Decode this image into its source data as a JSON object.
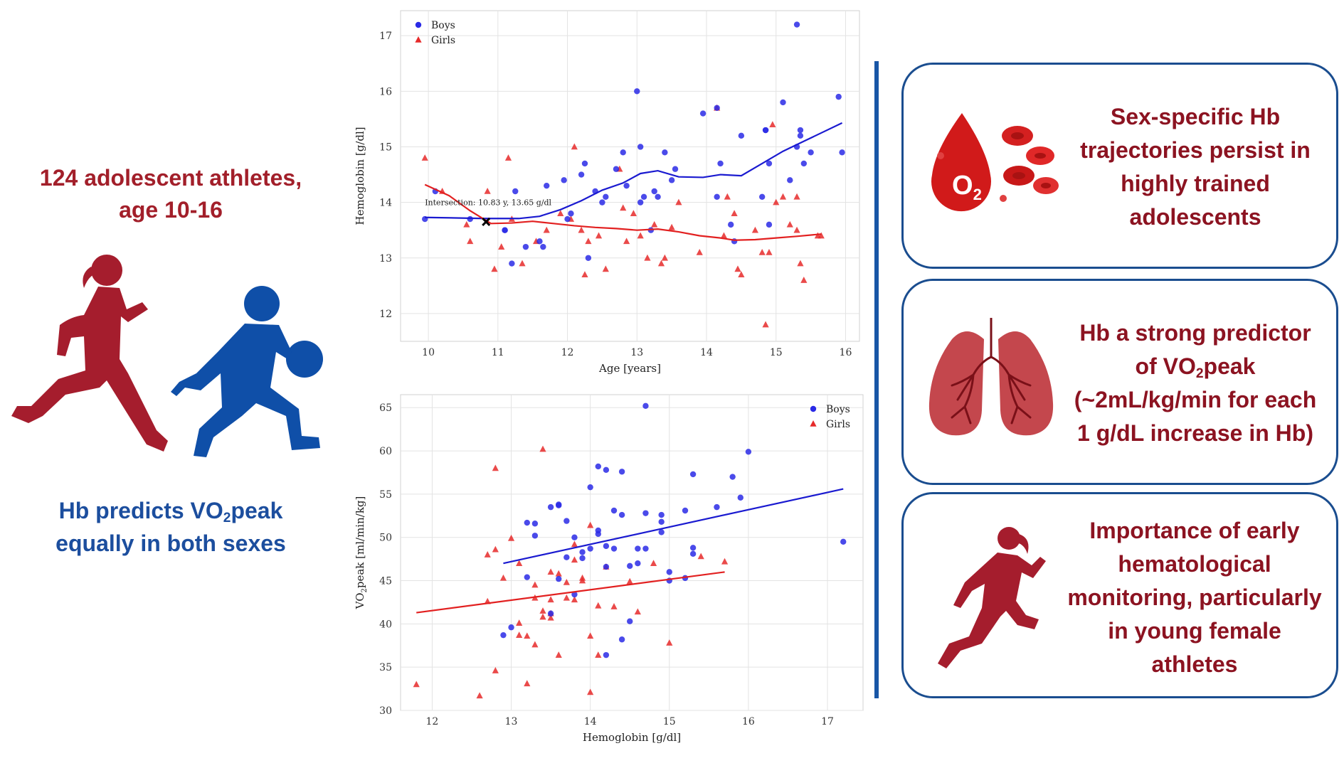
{
  "left": {
    "title_lines": [
      "124 adolescent athletes,",
      "age 10-16"
    ],
    "bottom_line1_pre": "Hb predicts VO",
    "bottom_line1_sub": "2",
    "bottom_line1_post": "peak",
    "bottom_line2": "equally in both sexes",
    "icons": [
      "female-runner-icon",
      "male-basketball-player-icon"
    ],
    "colors": {
      "female": "#a51d2d",
      "male": "#0f4fa8"
    }
  },
  "panels": [
    {
      "icon": "blood-drop-o2-icon",
      "drop_label": "O",
      "drop_sub": "2",
      "lines": [
        "Sex-specific Hb",
        "trajectories persist in",
        "highly trained",
        "adolescents"
      ]
    },
    {
      "icon": "lungs-icon",
      "line1": "Hb a strong predictor",
      "line2_pre": "of  VO",
      "line2_sub": "2",
      "line2_post": "peak",
      "line3": "(~2mL/kg/min for each",
      "line4": "1 g/dL increase in Hb)"
    },
    {
      "icon": "female-sprinter-icon",
      "lines": [
        "Importance of early",
        "hematological",
        "monitoring, particularly",
        "in young female",
        "athletes"
      ]
    }
  ],
  "chart_data": [
    {
      "type": "scatter",
      "xlabel": "Age [years]",
      "ylabel": "Hemoglobin [g/dl]",
      "xlim": [
        9.6,
        16.2
      ],
      "ylim": [
        11.5,
        17.45
      ],
      "xticks": [
        10,
        11,
        12,
        13,
        14,
        15,
        16
      ],
      "yticks": [
        12,
        13,
        14,
        15,
        16,
        17
      ],
      "grid": true,
      "legend": "top-left",
      "annotation": {
        "text": "Intersection: 10.83 y, 13.65 g/dl",
        "x": 10.83,
        "y": 13.65
      },
      "series": [
        {
          "name": "Boys",
          "marker": "circle",
          "color": "#2a2ae6",
          "points": [
            [
              9.95,
              13.7
            ],
            [
              10.1,
              14.2
            ],
            [
              10.6,
              13.7
            ],
            [
              11.1,
              13.5
            ],
            [
              11.2,
              12.9
            ],
            [
              11.25,
              14.2
            ],
            [
              11.4,
              13.2
            ],
            [
              11.6,
              13.3
            ],
            [
              11.65,
              13.2
            ],
            [
              11.7,
              14.3
            ],
            [
              11.95,
              14.4
            ],
            [
              12.0,
              13.7
            ],
            [
              12.2,
              14.5
            ],
            [
              12.25,
              14.7
            ],
            [
              12.3,
              13.0
            ],
            [
              12.4,
              14.2
            ],
            [
              12.5,
              14.0
            ],
            [
              12.55,
              14.1
            ],
            [
              12.7,
              14.6
            ],
            [
              12.8,
              14.9
            ],
            [
              12.85,
              14.3
            ],
            [
              13.0,
              16.0
            ],
            [
              13.05,
              14.0
            ],
            [
              13.05,
              15.0
            ],
            [
              13.2,
              13.5
            ],
            [
              13.25,
              14.2
            ],
            [
              13.3,
              14.1
            ],
            [
              13.4,
              14.9
            ],
            [
              13.5,
              14.4
            ],
            [
              13.55,
              14.6
            ],
            [
              13.95,
              15.6
            ],
            [
              14.15,
              15.7
            ],
            [
              14.15,
              14.1
            ],
            [
              14.2,
              14.7
            ],
            [
              14.35,
              13.6
            ],
            [
              14.4,
              13.3
            ],
            [
              14.5,
              15.2
            ],
            [
              14.8,
              14.1
            ],
            [
              14.85,
              15.3
            ],
            [
              14.9,
              13.6
            ],
            [
              14.9,
              14.7
            ],
            [
              15.1,
              15.8
            ],
            [
              15.2,
              14.4
            ],
            [
              15.3,
              17.2
            ],
            [
              15.35,
              15.3
            ],
            [
              15.35,
              15.2
            ],
            [
              15.4,
              14.7
            ],
            [
              15.5,
              14.9
            ],
            [
              15.9,
              15.9
            ],
            [
              15.95,
              14.9
            ],
            [
              15.3,
              15.0
            ],
            [
              14.85,
              15.3
            ],
            [
              11.1,
              13.5
            ],
            [
              12.05,
              13.8
            ],
            [
              13.1,
              14.1
            ]
          ]
        },
        {
          "name": "Girls",
          "marker": "triangle",
          "color": "#e62a2a",
          "points": [
            [
              9.95,
              14.8
            ],
            [
              10.2,
              14.2
            ],
            [
              10.55,
              13.6
            ],
            [
              10.6,
              13.3
            ],
            [
              10.85,
              14.2
            ],
            [
              10.95,
              12.8
            ],
            [
              11.05,
              13.2
            ],
            [
              11.15,
              14.8
            ],
            [
              11.2,
              13.7
            ],
            [
              11.35,
              12.9
            ],
            [
              11.55,
              13.3
            ],
            [
              11.7,
              13.5
            ],
            [
              11.9,
              13.8
            ],
            [
              12.05,
              13.7
            ],
            [
              12.1,
              15.0
            ],
            [
              12.2,
              13.5
            ],
            [
              12.25,
              12.7
            ],
            [
              12.3,
              13.3
            ],
            [
              12.45,
              13.4
            ],
            [
              12.55,
              12.8
            ],
            [
              12.75,
              14.6
            ],
            [
              12.85,
              13.3
            ],
            [
              12.95,
              13.8
            ],
            [
              13.05,
              13.4
            ],
            [
              13.15,
              13.0
            ],
            [
              13.25,
              13.6
            ],
            [
              13.35,
              12.9
            ],
            [
              13.4,
              13.0
            ],
            [
              13.6,
              14.0
            ],
            [
              13.9,
              13.1
            ],
            [
              14.15,
              15.7
            ],
            [
              14.25,
              13.4
            ],
            [
              14.3,
              14.1
            ],
            [
              14.4,
              13.8
            ],
            [
              14.45,
              12.8
            ],
            [
              14.5,
              12.7
            ],
            [
              14.7,
              13.5
            ],
            [
              14.8,
              13.1
            ],
            [
              14.85,
              11.8
            ],
            [
              14.9,
              13.1
            ],
            [
              14.95,
              15.4
            ],
            [
              15.1,
              14.1
            ],
            [
              15.2,
              13.6
            ],
            [
              15.3,
              14.1
            ],
            [
              15.35,
              12.9
            ],
            [
              15.4,
              12.6
            ],
            [
              15.6,
              13.4
            ],
            [
              15.65,
              13.4
            ],
            [
              15.3,
              13.5
            ],
            [
              15.0,
              14.0
            ],
            [
              13.5,
              13.55
            ],
            [
              12.8,
              13.9
            ]
          ]
        }
      ],
      "trend_boys": [
        [
          9.95,
          13.73
        ],
        [
          10.4,
          13.72
        ],
        [
          10.8,
          13.71
        ],
        [
          11.3,
          13.71
        ],
        [
          11.6,
          13.75
        ],
        [
          11.9,
          13.87
        ],
        [
          12.2,
          14.03
        ],
        [
          12.5,
          14.22
        ],
        [
          12.8,
          14.35
        ],
        [
          13.05,
          14.52
        ],
        [
          13.3,
          14.57
        ],
        [
          13.6,
          14.46
        ],
        [
          13.95,
          14.45
        ],
        [
          14.2,
          14.5
        ],
        [
          14.5,
          14.48
        ],
        [
          14.8,
          14.7
        ],
        [
          15.1,
          14.92
        ],
        [
          15.4,
          15.1
        ],
        [
          15.65,
          15.25
        ],
        [
          15.95,
          15.43
        ]
      ],
      "trend_girls": [
        [
          9.95,
          14.32
        ],
        [
          10.3,
          14.12
        ],
        [
          10.6,
          13.85
        ],
        [
          10.9,
          13.62
        ],
        [
          11.2,
          13.63
        ],
        [
          11.5,
          13.66
        ],
        [
          11.8,
          13.62
        ],
        [
          12.1,
          13.58
        ],
        [
          12.4,
          13.55
        ],
        [
          12.7,
          13.53
        ],
        [
          13.0,
          13.5
        ],
        [
          13.3,
          13.52
        ],
        [
          13.6,
          13.47
        ],
        [
          13.9,
          13.4
        ],
        [
          14.2,
          13.36
        ],
        [
          14.4,
          13.32
        ],
        [
          14.7,
          13.33
        ],
        [
          15.0,
          13.36
        ],
        [
          15.3,
          13.39
        ],
        [
          15.65,
          13.43
        ]
      ]
    },
    {
      "type": "scatter",
      "xlabel": "Hemoglobin [g/dl]",
      "ylabel_pre": "VO",
      "ylabel_sub": "2",
      "ylabel_post": "peak [ml/min/kg]",
      "xlim": [
        11.6,
        17.45
      ],
      "ylim": [
        30,
        66.5
      ],
      "xticks": [
        12,
        13,
        14,
        15,
        16,
        17
      ],
      "yticks": [
        30,
        35,
        40,
        45,
        50,
        55,
        60,
        65
      ],
      "grid": true,
      "legend": "top-right",
      "series": [
        {
          "name": "Boys",
          "marker": "circle",
          "color": "#2a2ae6",
          "points": [
            [
              12.9,
              38.7
            ],
            [
              13.0,
              39.6
            ],
            [
              13.2,
              45.4
            ],
            [
              13.2,
              51.7
            ],
            [
              13.3,
              50.2
            ],
            [
              13.3,
              51.6
            ],
            [
              13.5,
              53.5
            ],
            [
              13.5,
              41.2
            ],
            [
              13.6,
              53.7
            ],
            [
              13.6,
              53.8
            ],
            [
              13.6,
              45.2
            ],
            [
              13.7,
              47.7
            ],
            [
              13.7,
              51.9
            ],
            [
              13.8,
              50.0
            ],
            [
              13.8,
              43.4
            ],
            [
              13.9,
              48.3
            ],
            [
              14.0,
              55.8
            ],
            [
              14.0,
              48.7
            ],
            [
              14.1,
              58.2
            ],
            [
              14.1,
              50.8
            ],
            [
              14.2,
              57.8
            ],
            [
              14.2,
              49.0
            ],
            [
              14.2,
              46.6
            ],
            [
              14.2,
              36.4
            ],
            [
              14.3,
              53.1
            ],
            [
              14.3,
              48.7
            ],
            [
              14.4,
              57.6
            ],
            [
              14.4,
              52.6
            ],
            [
              14.4,
              38.2
            ],
            [
              14.5,
              40.3
            ],
            [
              14.6,
              47.0
            ],
            [
              14.6,
              48.7
            ],
            [
              14.7,
              48.7
            ],
            [
              14.7,
              52.8
            ],
            [
              14.7,
              65.2
            ],
            [
              14.9,
              52.6
            ],
            [
              14.9,
              51.8
            ],
            [
              14.9,
              50.6
            ],
            [
              15.0,
              45.0
            ],
            [
              15.0,
              46.0
            ],
            [
              15.2,
              45.3
            ],
            [
              15.2,
              53.1
            ],
            [
              15.3,
              57.3
            ],
            [
              15.3,
              48.8
            ],
            [
              15.3,
              48.1
            ],
            [
              15.6,
              53.5
            ],
            [
              15.8,
              57.0
            ],
            [
              15.9,
              54.6
            ],
            [
              16.0,
              59.9
            ],
            [
              17.2,
              49.5
            ],
            [
              14.1,
              50.4
            ],
            [
              13.9,
              47.6
            ],
            [
              14.5,
              46.7
            ]
          ]
        },
        {
          "name": "Girls",
          "marker": "triangle",
          "color": "#e62a2a",
          "points": [
            [
              11.8,
              33.0
            ],
            [
              12.6,
              31.7
            ],
            [
              12.7,
              42.6
            ],
            [
              12.7,
              48.0
            ],
            [
              12.8,
              58.0
            ],
            [
              12.8,
              48.6
            ],
            [
              12.8,
              34.6
            ],
            [
              12.9,
              45.3
            ],
            [
              13.0,
              49.9
            ],
            [
              13.1,
              47.0
            ],
            [
              13.1,
              38.7
            ],
            [
              13.1,
              40.1
            ],
            [
              13.2,
              33.1
            ],
            [
              13.2,
              38.6
            ],
            [
              13.3,
              44.5
            ],
            [
              13.3,
              37.6
            ],
            [
              13.3,
              43.0
            ],
            [
              13.4,
              60.2
            ],
            [
              13.4,
              41.5
            ],
            [
              13.4,
              40.8
            ],
            [
              13.5,
              40.7
            ],
            [
              13.5,
              42.8
            ],
            [
              13.5,
              46.0
            ],
            [
              13.6,
              45.8
            ],
            [
              13.6,
              36.4
            ],
            [
              13.7,
              43.0
            ],
            [
              13.7,
              44.8
            ],
            [
              13.8,
              42.8
            ],
            [
              13.8,
              49.2
            ],
            [
              13.8,
              47.4
            ],
            [
              13.9,
              45.3
            ],
            [
              14.0,
              51.4
            ],
            [
              14.0,
              38.6
            ],
            [
              14.0,
              32.1
            ],
            [
              14.1,
              42.1
            ],
            [
              14.1,
              36.4
            ],
            [
              14.2,
              46.6
            ],
            [
              14.5,
              44.9
            ],
            [
              14.6,
              41.4
            ],
            [
              14.8,
              47.0
            ],
            [
              15.0,
              37.8
            ],
            [
              15.4,
              47.8
            ],
            [
              15.7,
              47.2
            ],
            [
              13.5,
              41.2
            ],
            [
              14.3,
              42.0
            ],
            [
              13.9,
              45.0
            ]
          ]
        }
      ],
      "fit_boys": [
        [
          12.9,
          47.0
        ],
        [
          17.2,
          55.6
        ]
      ],
      "fit_girls": [
        [
          11.8,
          41.3
        ],
        [
          15.7,
          46.0
        ]
      ]
    }
  ]
}
